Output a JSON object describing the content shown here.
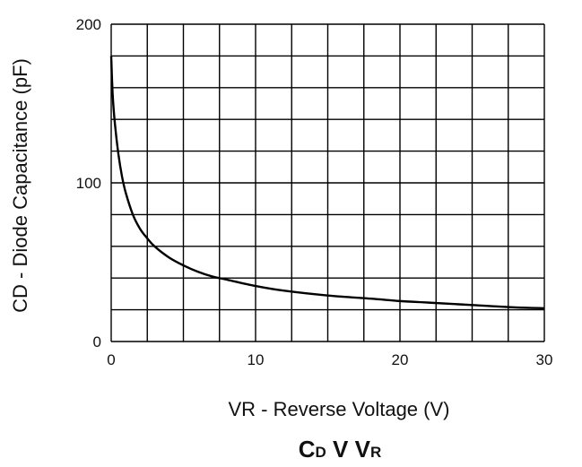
{
  "chart_data": {
    "type": "line",
    "title": {
      "main1": "C",
      "sub1": "D",
      "mid": " V ",
      "main2": "V",
      "sub2": "R"
    },
    "xlabel": "VR - Reverse Voltage (V)",
    "ylabel": "CD - Diode Capacitance (pF)",
    "xlim": [
      0,
      30
    ],
    "ylim": [
      0,
      200
    ],
    "x_ticks": [
      0,
      10,
      20,
      30
    ],
    "y_ticks": [
      0,
      100,
      200
    ],
    "x_tick_labels": [
      "0",
      "10",
      "20",
      "30"
    ],
    "y_tick_labels": [
      "0",
      "100",
      "200"
    ],
    "grid": true,
    "grid_x_step": 2.5,
    "grid_y_step": 20,
    "series": [
      {
        "x": [
          0,
          0.1,
          0.25,
          0.5,
          0.75,
          1,
          1.5,
          2,
          2.5,
          3,
          4,
          5,
          6,
          7,
          8,
          10,
          12,
          15,
          18,
          20,
          22,
          25,
          28,
          30
        ],
        "y": [
          180,
          156,
          138,
          118,
          104,
          94,
          80,
          71,
          65,
          60,
          53,
          48,
          44,
          41,
          39,
          35,
          32,
          29,
          27,
          25.5,
          24.5,
          23,
          21.5,
          21
        ]
      }
    ]
  }
}
